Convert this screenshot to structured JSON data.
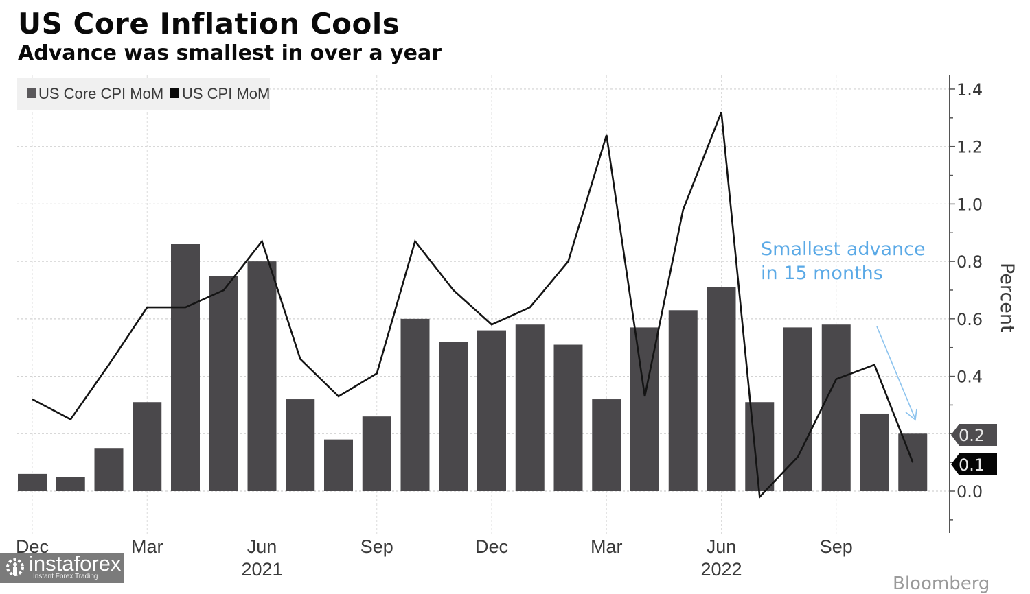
{
  "header": {
    "title": "US Core Inflation Cools",
    "subtitle": "Advance was smallest in over a year"
  },
  "watermark": {
    "brand": "instaforex",
    "tagline": "Instant Forex Trading",
    "source_partial": "Bloomberg"
  },
  "chart_data": {
    "type": "bar",
    "title": "US Core Inflation Cools",
    "subtitle": "Advance was smallest in over a year",
    "xlabel": "",
    "ylabel": "Percent",
    "ylim": [
      -0.15,
      1.45
    ],
    "yticks": [
      0.0,
      0.2,
      0.4,
      0.6,
      0.8,
      1.0,
      1.2,
      1.4
    ],
    "ytick_labels": [
      "0.0",
      "0.2",
      "0.4",
      "0.6",
      "0.8",
      "1.0",
      "1.2",
      "1.4"
    ],
    "y_axis_side": "right",
    "grid": true,
    "legend_position": "top-left",
    "categories": [
      "Dec 2020",
      "Jan 2021",
      "Feb 2021",
      "Mar 2021",
      "Apr 2021",
      "May 2021",
      "Jun 2021",
      "Jul 2021",
      "Aug 2021",
      "Sep 2021",
      "Oct 2021",
      "Nov 2021",
      "Dec 2021",
      "Jan 2022",
      "Feb 2022",
      "Mar 2022",
      "Apr 2022",
      "May 2022",
      "Jun 2022",
      "Jul 2022",
      "Aug 2022",
      "Sep 2022",
      "Oct 2022",
      "Nov 2022"
    ],
    "x_tick_labels": [
      {
        "index": 0,
        "label": "Dec",
        "year": ""
      },
      {
        "index": 3,
        "label": "Mar",
        "year": ""
      },
      {
        "index": 6,
        "label": "Jun",
        "year": "2021"
      },
      {
        "index": 9,
        "label": "Sep",
        "year": ""
      },
      {
        "index": 12,
        "label": "Dec",
        "year": ""
      },
      {
        "index": 15,
        "label": "Mar",
        "year": ""
      },
      {
        "index": 18,
        "label": "Jun",
        "year": "2022"
      },
      {
        "index": 21,
        "label": "Sep",
        "year": ""
      }
    ],
    "series": [
      {
        "name": "US Core CPI MoM",
        "type": "bar",
        "color": "#4a484b",
        "values": [
          0.06,
          0.05,
          0.15,
          0.31,
          0.86,
          0.75,
          0.8,
          0.32,
          0.18,
          0.26,
          0.6,
          0.52,
          0.56,
          0.58,
          0.51,
          0.32,
          0.57,
          0.63,
          0.71,
          0.31,
          0.57,
          0.58,
          0.27,
          0.2
        ],
        "last_value_label": "0.2"
      },
      {
        "name": "US CPI MoM",
        "type": "line",
        "color": "#141414",
        "values": [
          0.32,
          0.25,
          0.44,
          0.64,
          0.64,
          0.7,
          0.87,
          0.46,
          0.33,
          0.41,
          0.87,
          0.7,
          0.58,
          0.64,
          0.8,
          1.24,
          0.33,
          0.98,
          1.32,
          -0.02,
          0.12,
          0.39,
          0.44,
          0.1
        ],
        "last_value_label": "0.1"
      }
    ],
    "annotations": [
      {
        "text_lines": [
          "Smallest advance",
          "in 15 months"
        ],
        "color": "#5aa9e6",
        "points_to": "Nov 2022"
      }
    ]
  }
}
